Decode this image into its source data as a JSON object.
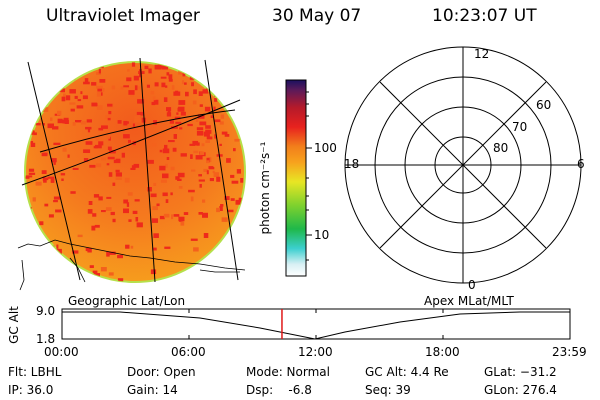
{
  "header": {
    "instrument": "Ultraviolet Imager",
    "date": "30 May 07",
    "time": "10:23:07 UT"
  },
  "colorbar": {
    "unit_label": "photon cm⁻²s⁻¹",
    "ticks": [
      "100",
      "10"
    ]
  },
  "polar_plot": {
    "mlt_labels": [
      "12",
      "18",
      "6",
      "0"
    ],
    "lat_labels": [
      "60",
      "70",
      "80"
    ]
  },
  "track": {
    "left_label": "Geographic Lat/Lon",
    "right_label": "Apex MLat/MLT",
    "axis_label": "GC Alt",
    "y_ticks": [
      "9.0",
      "1.8"
    ],
    "x_ticks": [
      "00:00",
      "06:00",
      "12:00",
      "18:00",
      "23:59"
    ],
    "current_time_fraction": 0.433
  },
  "info": {
    "filter": "Flt: LBHL",
    "ip": "IP: 36.0",
    "door": "Door: Open",
    "gain": "Gain: 14",
    "mode": "Mode: Normal",
    "dsp": "Dsp:    -6.8",
    "gc_alt": "GC Alt: 4.4 Re",
    "seq": "Seq: 39",
    "glat": "GLat: −31.2",
    "glon": "GLon: 276.4"
  },
  "colors": {
    "disk_base": "#f7931e",
    "disk_hot": "#ee2a1b",
    "limb": "#b6e04a",
    "marker": "#e01818"
  }
}
